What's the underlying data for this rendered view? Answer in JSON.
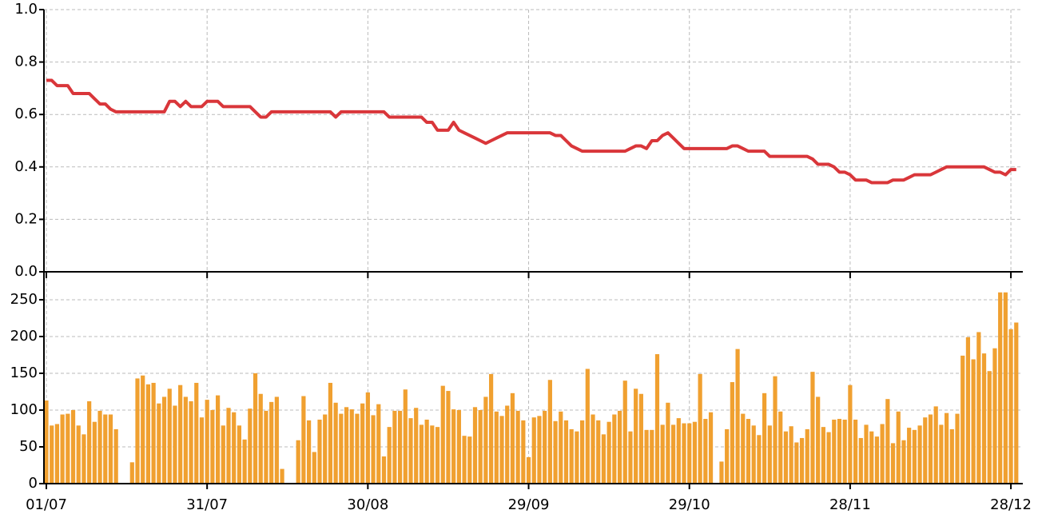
{
  "chart_data": [
    {
      "type": "line",
      "color": "#d9363a",
      "grid": true,
      "ylim": [
        0,
        1
      ],
      "yticks": [
        {
          "value": 0,
          "label": "0.0"
        },
        {
          "value": 0.2,
          "label": "0.2"
        },
        {
          "value": 0.4,
          "label": "0.4"
        },
        {
          "value": 0.6,
          "label": "0.6"
        },
        {
          "value": 0.8,
          "label": "0.8"
        },
        {
          "value": 1,
          "label": "1.0"
        }
      ],
      "values": [
        0.73,
        0.73,
        0.71,
        0.71,
        0.71,
        0.68,
        0.68,
        0.68,
        0.68,
        0.66,
        0.64,
        0.64,
        0.62,
        0.61,
        0.61,
        0.61,
        0.61,
        0.61,
        0.61,
        0.61,
        0.61,
        0.61,
        0.61,
        0.65,
        0.65,
        0.63,
        0.65,
        0.63,
        0.63,
        0.63,
        0.65,
        0.65,
        0.65,
        0.63,
        0.63,
        0.63,
        0.63,
        0.63,
        0.63,
        0.61,
        0.59,
        0.59,
        0.61,
        0.61,
        0.61,
        0.61,
        0.61,
        0.61,
        0.61,
        0.61,
        0.61,
        0.61,
        0.61,
        0.61,
        0.59,
        0.61,
        0.61,
        0.61,
        0.61,
        0.61,
        0.61,
        0.61,
        0.61,
        0.61,
        0.59,
        0.59,
        0.59,
        0.59,
        0.59,
        0.59,
        0.59,
        0.57,
        0.57,
        0.54,
        0.54,
        0.54,
        0.57,
        0.54,
        0.53,
        0.52,
        0.51,
        0.5,
        0.49,
        0.5,
        0.51,
        0.52,
        0.53,
        0.53,
        0.53,
        0.53,
        0.53,
        0.53,
        0.53,
        0.53,
        0.53,
        0.52,
        0.52,
        0.5,
        0.48,
        0.47,
        0.46,
        0.46,
        0.46,
        0.46,
        0.46,
        0.46,
        0.46,
        0.46,
        0.46,
        0.47,
        0.48,
        0.48,
        0.47,
        0.5,
        0.5,
        0.52,
        0.53,
        0.51,
        0.49,
        0.47,
        0.47,
        0.47,
        0.47,
        0.47,
        0.47,
        0.47,
        0.47,
        0.47,
        0.48,
        0.48,
        0.47,
        0.46,
        0.46,
        0.46,
        0.46,
        0.44,
        0.44,
        0.44,
        0.44,
        0.44,
        0.44,
        0.44,
        0.44,
        0.43,
        0.41,
        0.41,
        0.41,
        0.4,
        0.38,
        0.38,
        0.37,
        0.35,
        0.35,
        0.35,
        0.34,
        0.34,
        0.34,
        0.34,
        0.35,
        0.35,
        0.35,
        0.36,
        0.37,
        0.37,
        0.37,
        0.37,
        0.38,
        0.39,
        0.4,
        0.4,
        0.4,
        0.4,
        0.4,
        0.4,
        0.4,
        0.4,
        0.39,
        0.38,
        0.38,
        0.37,
        0.39,
        0.39
      ]
    },
    {
      "type": "bar",
      "color": "#f0a030",
      "grid": true,
      "ylim": [
        0,
        288
      ],
      "yticks": [
        0,
        50,
        100,
        150,
        200,
        250
      ],
      "categories": [
        "01/07",
        null,
        null,
        null,
        null,
        null,
        null,
        null,
        null,
        null,
        null,
        null,
        null,
        null,
        null,
        null,
        null,
        null,
        null,
        null,
        null,
        null,
        null,
        null,
        null,
        null,
        null,
        null,
        null,
        null,
        "31/07",
        null,
        null,
        null,
        null,
        null,
        null,
        null,
        null,
        null,
        null,
        null,
        null,
        null,
        null,
        null,
        null,
        null,
        null,
        null,
        null,
        null,
        null,
        null,
        null,
        null,
        null,
        null,
        null,
        null,
        "30/08",
        null,
        null,
        null,
        null,
        null,
        null,
        null,
        null,
        null,
        null,
        null,
        null,
        null,
        null,
        null,
        null,
        null,
        null,
        null,
        null,
        null,
        null,
        null,
        null,
        null,
        null,
        null,
        null,
        null,
        "29/09",
        null,
        null,
        null,
        null,
        null,
        null,
        null,
        null,
        null,
        null,
        null,
        null,
        null,
        null,
        null,
        null,
        null,
        null,
        null,
        null,
        null,
        null,
        null,
        null,
        null,
        null,
        null,
        null,
        null,
        "29/10",
        null,
        null,
        null,
        null,
        null,
        null,
        null,
        null,
        null,
        null,
        null,
        null,
        null,
        null,
        null,
        null,
        null,
        null,
        null,
        null,
        null,
        null,
        null,
        null,
        null,
        null,
        null,
        null,
        null,
        "28/11",
        null,
        null,
        null,
        null,
        null,
        null,
        null,
        null,
        null,
        null,
        null,
        null,
        null,
        null,
        null,
        null,
        null,
        null,
        null,
        null,
        null,
        null,
        null,
        null,
        null,
        null,
        null,
        null,
        null,
        "28/12",
        null
      ],
      "values": [
        113,
        79,
        81,
        94,
        95,
        100,
        79,
        67,
        112,
        84,
        99,
        94,
        94,
        74,
        null,
        null,
        29,
        143,
        147,
        135,
        137,
        109,
        118,
        129,
        106,
        134,
        118,
        112,
        137,
        90,
        114,
        100,
        120,
        79,
        103,
        97,
        79,
        60,
        102,
        150,
        122,
        99,
        111,
        118,
        20,
        null,
        null,
        59,
        119,
        86,
        43,
        87,
        94,
        137,
        110,
        95,
        104,
        101,
        95,
        109,
        124,
        93,
        108,
        37,
        77,
        99,
        99,
        128,
        89,
        103,
        80,
        87,
        79,
        77,
        133,
        126,
        101,
        100,
        65,
        64,
        104,
        100,
        118,
        149,
        98,
        92,
        106,
        123,
        99,
        86,
        36,
        90,
        92,
        99,
        141,
        85,
        98,
        86,
        74,
        71,
        86,
        156,
        94,
        86,
        67,
        84,
        94,
        99,
        140,
        71,
        129,
        122,
        73,
        73,
        176,
        80,
        110,
        80,
        89,
        82,
        82,
        84,
        149,
        88,
        97,
        null,
        30,
        74,
        138,
        183,
        95,
        88,
        79,
        66,
        123,
        79,
        146,
        98,
        71,
        78,
        56,
        62,
        74,
        152,
        118,
        77,
        70,
        87,
        88,
        87,
        134,
        87,
        62,
        80,
        71,
        64,
        81,
        115,
        55,
        98,
        59,
        76,
        73,
        79,
        90,
        94,
        105,
        80,
        96,
        74,
        95,
        174,
        199,
        169,
        206,
        177,
        153,
        184,
        260,
        260,
        210,
        219
      ]
    }
  ]
}
